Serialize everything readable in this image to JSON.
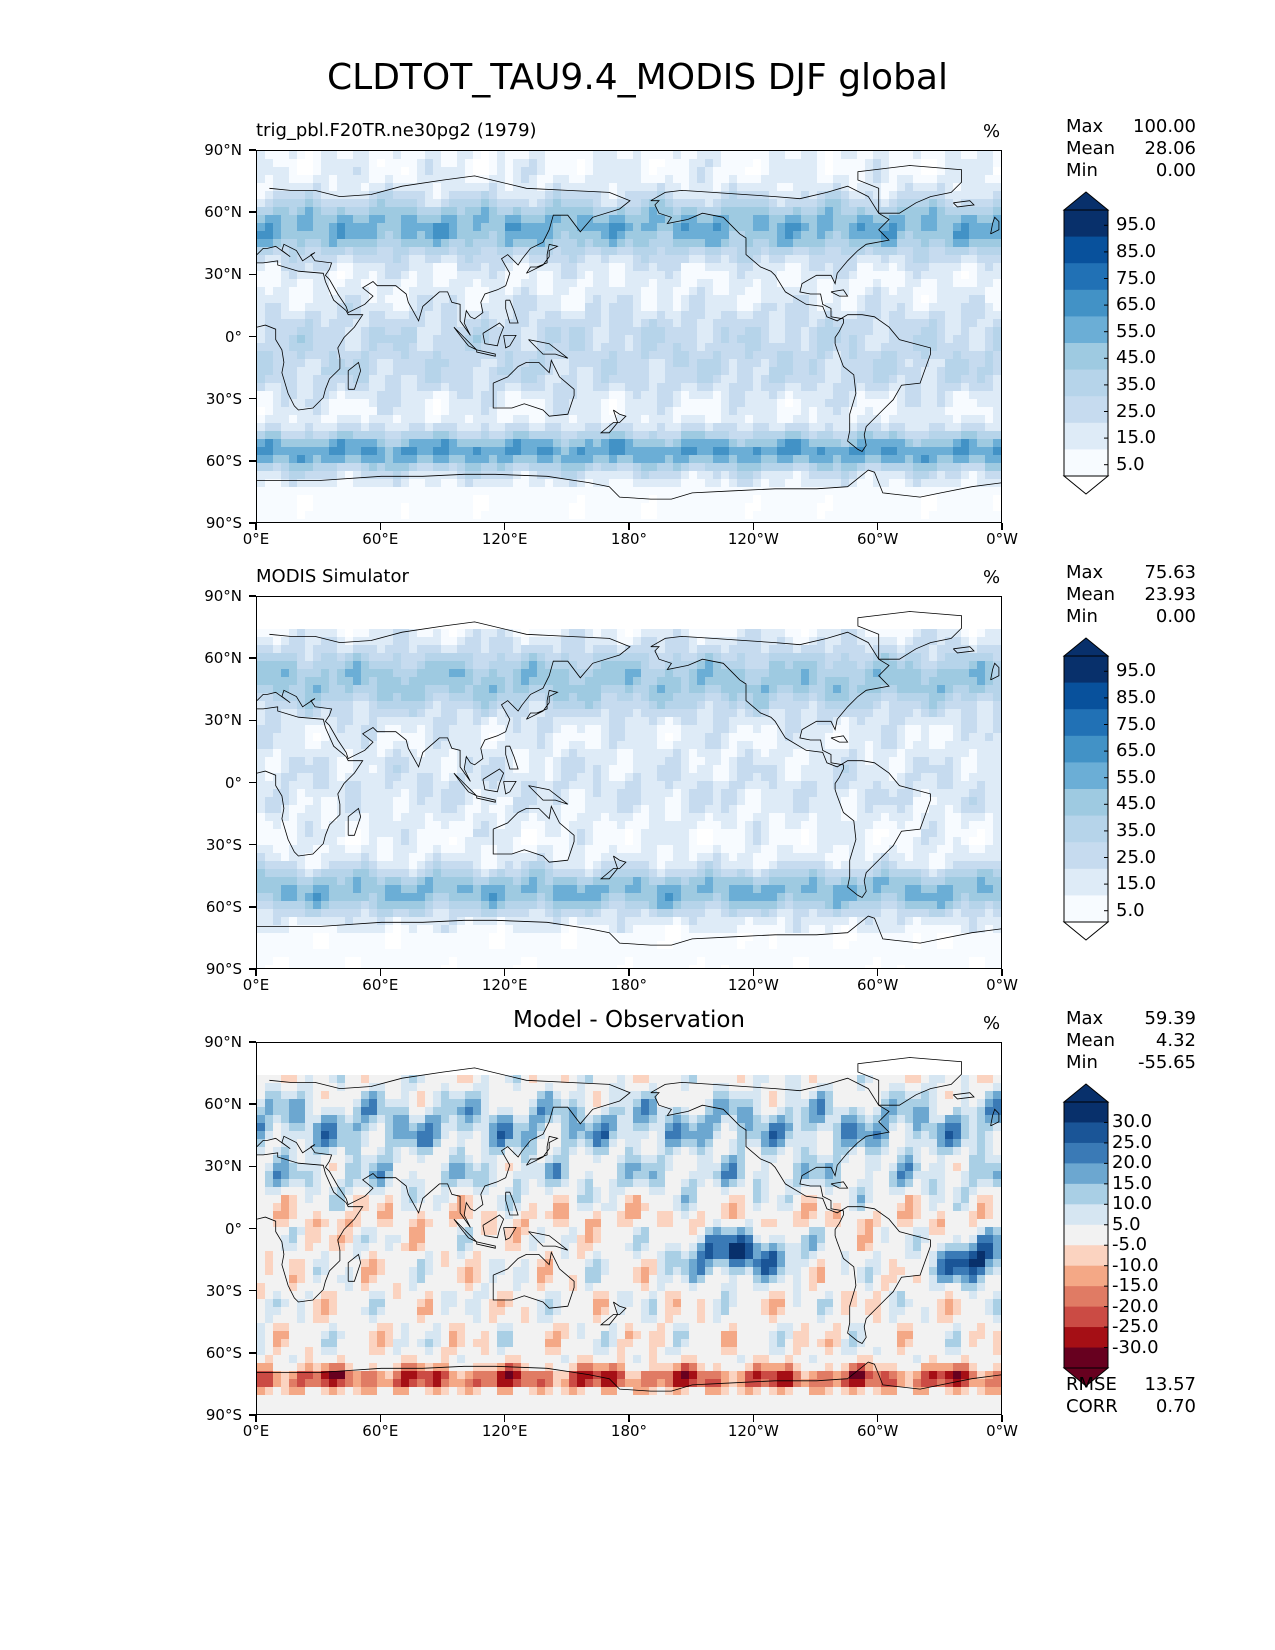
{
  "figure": {
    "title": "CLDTOT_TAU9.4_MODIS DJF global"
  },
  "axes": {
    "lat_ticks": [
      "90°N",
      "60°N",
      "30°N",
      "0°",
      "30°S",
      "60°S",
      "90°S"
    ],
    "lon_ticks": [
      "0°E",
      "60°E",
      "120°E",
      "180°",
      "120°W",
      "60°W",
      "0°W"
    ]
  },
  "colors": {
    "blues": [
      "#f7fbff",
      "#deebf7",
      "#c6dbef",
      "#b6d4ea",
      "#9ecae1",
      "#6baed6",
      "#4292c6",
      "#2171b5",
      "#08519c",
      "#08306b",
      "#08306b"
    ],
    "rdbu": [
      "#67001f",
      "#a50f15",
      "#cb4b44",
      "#e07b64",
      "#f4a886",
      "#fbd3c0",
      "#f2f2f2",
      "#d6e6f2",
      "#a9cfe5",
      "#6ca7d0",
      "#3a7ab6",
      "#1a5597",
      "#08306b"
    ],
    "coast": "#000000"
  },
  "panels": [
    {
      "id": "model",
      "title_left": "trig_pbl.F20TR.ne30pg2 (1979)",
      "title_center": "",
      "units": "%",
      "stats": [
        {
          "label": "Max",
          "value": "100.00"
        },
        {
          "label": "Mean",
          "value": "28.06"
        },
        {
          "label": "Min",
          "value": "0.00"
        }
      ],
      "colorbar": {
        "scale": "blues",
        "labels": [
          "95.0",
          "85.0",
          "75.0",
          "65.0",
          "55.0",
          "45.0",
          "35.0",
          "25.0",
          "15.0",
          "5.0"
        ]
      }
    },
    {
      "id": "obs",
      "title_left": "MODIS Simulator",
      "title_center": "",
      "units": "%",
      "stats": [
        {
          "label": "Max",
          "value": "75.63"
        },
        {
          "label": "Mean",
          "value": "23.93"
        },
        {
          "label": "Min",
          "value": "0.00"
        }
      ],
      "colorbar": {
        "scale": "blues",
        "labels": [
          "95.0",
          "85.0",
          "75.0",
          "65.0",
          "55.0",
          "45.0",
          "35.0",
          "25.0",
          "15.0",
          "5.0"
        ]
      }
    },
    {
      "id": "diff",
      "title_left": "",
      "title_center": "Model - Observation",
      "units": "%",
      "stats": [
        {
          "label": "Max",
          "value": "59.39"
        },
        {
          "label": "Mean",
          "value": "4.32"
        },
        {
          "label": "Min",
          "value": "-55.65"
        }
      ],
      "colorbar": {
        "scale": "rdbu",
        "labels": [
          "30.0",
          "25.0",
          "20.0",
          "15.0",
          "10.0",
          "5.0",
          "-5.0",
          "-10.0",
          "-15.0",
          "-20.0",
          "-25.0",
          "-30.0"
        ]
      },
      "metrics": [
        {
          "label": "RMSE",
          "value": "13.57"
        },
        {
          "label": "CORR",
          "value": "0.70"
        }
      ]
    }
  ]
}
